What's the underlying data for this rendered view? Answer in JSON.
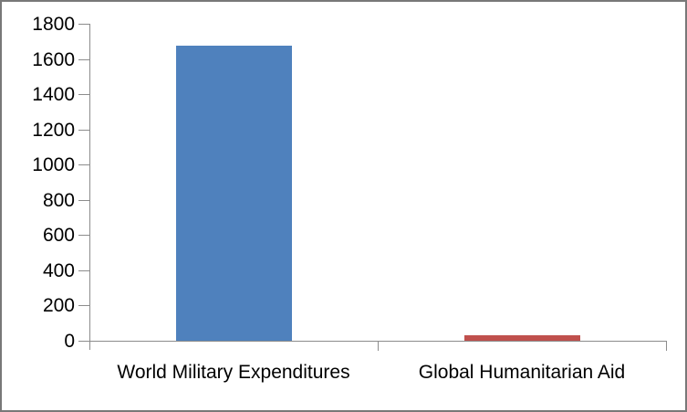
{
  "chart_data": {
    "type": "bar",
    "title": "",
    "categories": [
      "World Military Expenditures",
      "Global Humanitarian Aid"
    ],
    "values": [
      1675,
      30
    ],
    "bar_colors": [
      "#4F81BD",
      "#C0504D"
    ],
    "xlabel": "",
    "ylabel": "",
    "ylim": [
      0,
      1800
    ],
    "yticks": [
      0,
      200,
      400,
      600,
      800,
      1000,
      1200,
      1400,
      1600,
      1800
    ],
    "grid": false,
    "legend": false,
    "axis_color": "#8C8C8C",
    "text_color": "#000000",
    "background": "#FFFFFF",
    "frame_border_color": "#787878"
  }
}
